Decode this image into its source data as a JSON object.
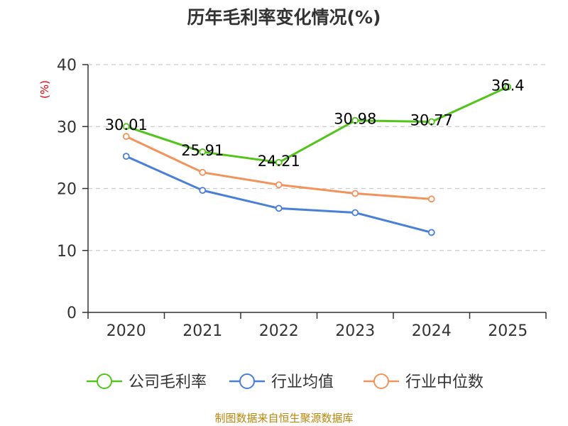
{
  "chart_data": {
    "type": "line",
    "title": "历年毛利率变化情况(%)",
    "ylabel": "(%)",
    "xlabel": "",
    "categories": [
      "2020",
      "2021",
      "2022",
      "2023",
      "2024",
      "2025"
    ],
    "ylim": [
      0,
      40
    ],
    "yticks": [
      0,
      10,
      20,
      30,
      40
    ],
    "grid": true,
    "legend_position": "bottom",
    "series": [
      {
        "name": "公司毛利率",
        "color": "#52c41a",
        "values": [
          30.01,
          25.91,
          24.21,
          30.98,
          30.77,
          36.4
        ],
        "labels": [
          "30.01",
          "25.91",
          "24.21",
          "30.98",
          "30.77",
          "36.4"
        ]
      },
      {
        "name": "行业均值",
        "color": "#4a7fd8",
        "values": [
          25.2,
          19.7,
          16.8,
          16.1,
          12.9,
          null
        ]
      },
      {
        "name": "行业中位数",
        "color": "#f2935c",
        "values": [
          28.4,
          22.6,
          20.6,
          19.2,
          18.3,
          null
        ]
      }
    ],
    "source": "制图数据来自恒生聚源数据库"
  }
}
